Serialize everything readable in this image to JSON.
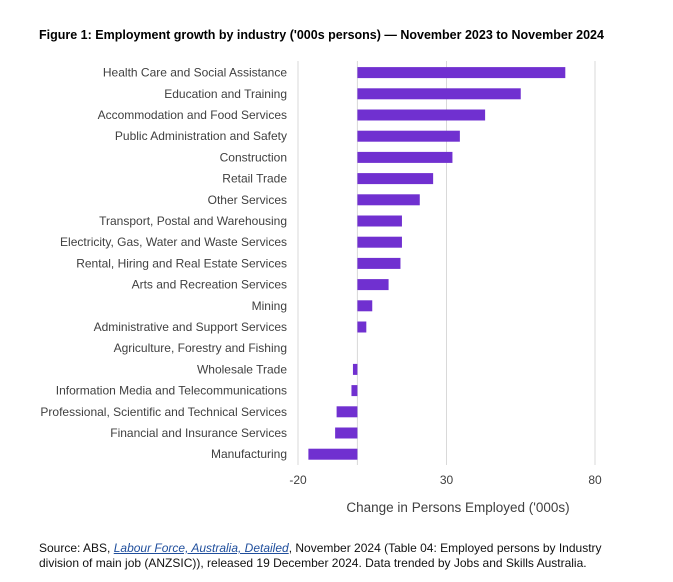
{
  "figure": {
    "title": "Figure 1: Employment growth by industry ('000s persons) — November 2023 to November 2024"
  },
  "colors": {
    "bar": "#7030d0",
    "grid": "#d9d9d9"
  },
  "chart_data": {
    "type": "bar",
    "orientation": "horizontal",
    "title": "Figure 1: Employment growth by industry ('000s persons) — November 2023 to November 2024",
    "xlabel": "Change in Persons Employed ('000s)",
    "ylabel": "",
    "xlim": [
      -20,
      80
    ],
    "xticks": [
      -20,
      30,
      80
    ],
    "grid": true,
    "categories": [
      "Health Care and Social Assistance",
      "Education and Training",
      "Accommodation and Food Services",
      "Public Administration and Safety",
      "Construction",
      "Retail Trade",
      "Other Services",
      "Transport, Postal and Warehousing",
      "Electricity, Gas, Water and Waste Services",
      "Rental, Hiring and Real Estate Services",
      "Arts and Recreation Services",
      "Mining",
      "Administrative and Support Services",
      "Agriculture, Forestry and Fishing",
      "Wholesale Trade",
      "Information Media and Telecommunications",
      "Professional, Scientific and Technical Services",
      "Financial and Insurance Services",
      "Manufacturing"
    ],
    "values": [
      70,
      55,
      43,
      34.5,
      32,
      25.5,
      21,
      15,
      15,
      14.5,
      10.5,
      5,
      3,
      0,
      -1.5,
      -2,
      -7,
      -7.5,
      -16.5
    ]
  },
  "source": {
    "prefix": "Source: ABS, ",
    "link_text": "Labour Force, Australia, Detailed",
    "suffix": ", November 2024 (Table 04: Employed persons by Industry division of main job (ANZSIC)), released 19 December 2024. Data trended by Jobs and Skills Australia."
  }
}
